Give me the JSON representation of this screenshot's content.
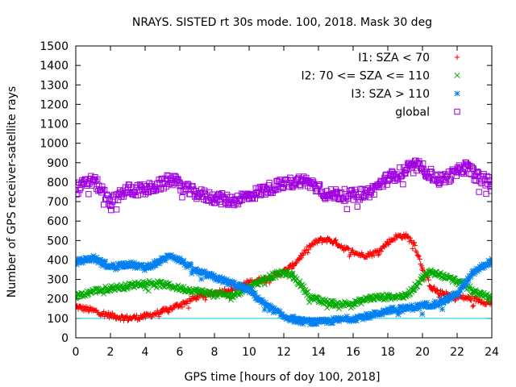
{
  "chart_data": {
    "type": "scatter",
    "title": "NRAYS. SISTED rt 30s mode. 100, 2018. Mask 30 deg",
    "xlabel": "GPS time [hours of doy 100, 2018]",
    "ylabel": "Number of GPS receiver-satellite rays",
    "xlim": [
      0,
      24
    ],
    "ylim": [
      0,
      1500
    ],
    "xticks": [
      0,
      2,
      4,
      6,
      8,
      10,
      12,
      14,
      16,
      18,
      20,
      22,
      24
    ],
    "yticks": [
      0,
      100,
      200,
      300,
      400,
      500,
      600,
      700,
      800,
      900,
      1000,
      1100,
      1200,
      1300,
      1400,
      1500
    ],
    "legend_position": "top-right",
    "reference_line": {
      "y": 100,
      "color": "#00ccdd"
    },
    "series": [
      {
        "name": "I1: SZA < 70",
        "marker": "plus",
        "color": "#ff0000",
        "x": [
          0,
          1,
          2,
          3,
          4,
          5,
          6,
          7,
          8,
          9,
          10,
          11,
          12,
          12.5,
          13,
          13.5,
          14,
          14.5,
          15,
          15.5,
          16,
          16.5,
          17,
          17.5,
          18,
          18.5,
          19,
          19.5,
          20,
          20.5,
          21,
          22,
          23,
          24
        ],
        "values": [
          160,
          140,
          115,
          100,
          110,
          135,
          170,
          210,
          230,
          250,
          285,
          305,
          340,
          370,
          420,
          470,
          500,
          505,
          490,
          460,
          440,
          425,
          430,
          445,
          490,
          520,
          525,
          490,
          360,
          260,
          230,
          210,
          200,
          175
        ]
      },
      {
        "name": "I2: 70 <= SZA <= 110",
        "marker": "cross",
        "color": "#00aa00",
        "x": [
          0,
          1,
          2,
          3,
          4,
          5,
          6,
          7,
          8,
          9,
          10,
          11,
          12,
          12.5,
          13,
          13.5,
          14,
          15,
          16,
          17,
          18,
          19,
          19.5,
          20,
          20.5,
          21,
          22,
          23,
          24
        ],
        "values": [
          210,
          240,
          255,
          265,
          285,
          275,
          255,
          240,
          225,
          215,
          260,
          310,
          335,
          320,
          270,
          215,
          190,
          175,
          175,
          205,
          210,
          215,
          255,
          310,
          340,
          325,
          290,
          240,
          200
        ]
      },
      {
        "name": "I3: SZA > 110",
        "marker": "star",
        "color": "#0080f0",
        "x": [
          0,
          1,
          2,
          3,
          4,
          5,
          5.5,
          6,
          7,
          8,
          9,
          10,
          11,
          12,
          13,
          14,
          15,
          16,
          17,
          18,
          19,
          20,
          21,
          22,
          23,
          24
        ],
        "values": [
          390,
          410,
          365,
          380,
          360,
          400,
          425,
          400,
          340,
          310,
          280,
          245,
          165,
          110,
          85,
          80,
          90,
          100,
          115,
          140,
          150,
          165,
          180,
          225,
          340,
          395
        ]
      },
      {
        "name": "global",
        "marker": "square",
        "color": "#a000e0",
        "x": [
          0,
          0.5,
          1,
          1.5,
          2,
          2.5,
          3,
          4,
          5,
          5.5,
          6,
          7,
          8,
          9,
          10,
          11,
          12,
          13,
          14,
          14.5,
          15,
          16,
          17,
          18,
          19,
          19.5,
          20,
          21,
          22,
          22.5,
          23,
          24
        ],
        "values": [
          760,
          790,
          810,
          760,
          680,
          740,
          760,
          760,
          790,
          820,
          780,
          740,
          720,
          705,
          730,
          765,
          790,
          810,
          780,
          730,
          740,
          730,
          750,
          820,
          860,
          890,
          870,
          810,
          850,
          880,
          840,
          790
        ]
      }
    ]
  }
}
